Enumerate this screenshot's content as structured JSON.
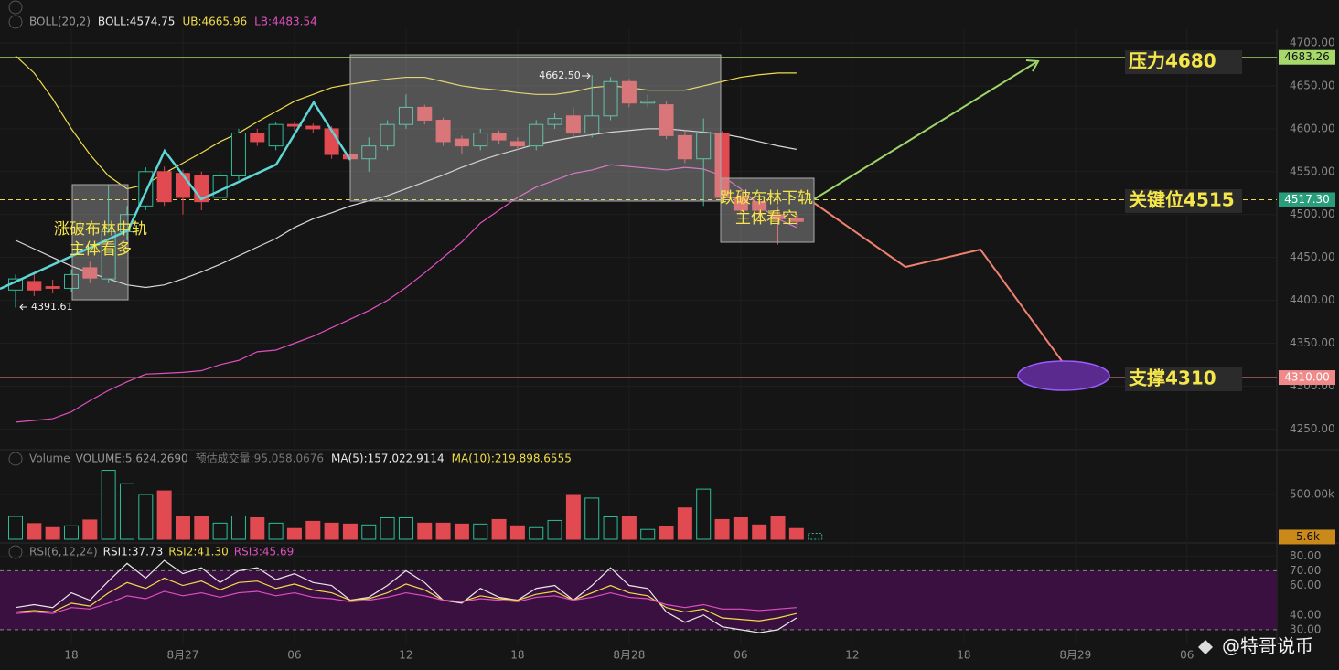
{
  "chart_data": [
    {
      "type": "candlestick",
      "legend": [
        {
          "text": "BOLL(20,2)",
          "color": "#9a9a9a"
        },
        {
          "text": "BOLL:4574.75",
          "color": "#e8e8e8"
        },
        {
          "text": "UB:4665.96",
          "color": "#f0dc4a"
        },
        {
          "text": "LB:4483.54",
          "color": "#e04fc0"
        }
      ],
      "categories": [
        null,
        null,
        null,
        "18",
        null,
        null,
        null,
        null,
        null,
        "8月27",
        null,
        null,
        null,
        null,
        null,
        "06",
        null,
        null,
        null,
        null,
        null,
        "12",
        null,
        null,
        null,
        null,
        null,
        "18",
        null,
        null,
        null,
        null,
        null,
        "8月28",
        null,
        null,
        null,
        null,
        null,
        "06",
        null,
        null,
        null,
        null,
        null,
        "12",
        null,
        null,
        null,
        null,
        null,
        "18",
        null,
        null,
        null,
        null,
        null,
        "8月29",
        null,
        null,
        null,
        null,
        null,
        "06"
      ],
      "open": [
        4412,
        4422,
        4416,
        4414,
        4438,
        4425,
        4480,
        4510,
        4550,
        4548,
        4545,
        4520,
        4545,
        4595,
        4580,
        4605,
        4603,
        4600,
        4570,
        4565,
        4580,
        4605,
        4625,
        4610,
        4588,
        4580,
        4595,
        4585,
        4580,
        4605,
        4615,
        4595,
        4615,
        4655,
        4630,
        4628,
        4592,
        4565,
        4595,
        4520,
        4515,
        4500,
        4495,
        null,
        null,
        null,
        null,
        null,
        null,
        null,
        null,
        null,
        null,
        null,
        null,
        null,
        null,
        null,
        null,
        null,
        null,
        null,
        null,
        null
      ],
      "high": [
        4430,
        4432,
        4424,
        4436,
        4445,
        4535,
        4510,
        4555,
        4556,
        4552,
        4550,
        4550,
        4600,
        4600,
        4608,
        4607,
        4606,
        4603,
        4572,
        4590,
        4610,
        4640,
        4628,
        4613,
        4592,
        4600,
        4598,
        4590,
        4610,
        4618,
        4625,
        4662.5,
        4660,
        4658,
        4640,
        4632,
        4598,
        4612,
        4597,
        4525,
        4520,
        4510,
        4500,
        null,
        null,
        null,
        null,
        null,
        null,
        null,
        null,
        null,
        null,
        null,
        null,
        null,
        null,
        null,
        null,
        null,
        null,
        null,
        null,
        null
      ],
      "low": [
        4391.61,
        4405,
        4408,
        4410,
        4420,
        4420,
        4470,
        4505,
        4510,
        4500,
        4505,
        4515,
        4540,
        4580,
        4575,
        4598,
        4595,
        4565,
        4560,
        4550,
        4575,
        4600,
        4605,
        4580,
        4570,
        4575,
        4582,
        4575,
        4575,
        4600,
        4590,
        4590,
        4610,
        4625,
        4625,
        4588,
        4560,
        4510,
        4515,
        4500,
        4495,
        4465,
        4488,
        null,
        null,
        null,
        null,
        null,
        null,
        null,
        null,
        null,
        null,
        null,
        null,
        null,
        null,
        null,
        null,
        null,
        null,
        null,
        null,
        null
      ],
      "close": [
        4425,
        4412,
        4414,
        4430,
        4426,
        4480,
        4500,
        4550,
        4515,
        4520,
        4515,
        4545,
        4595,
        4585,
        4605,
        4603,
        4600,
        4570,
        4565,
        4580,
        4605,
        4625,
        4610,
        4585,
        4580,
        4595,
        4587,
        4580,
        4605,
        4612,
        4595,
        4615,
        4655,
        4630,
        4632,
        4592,
        4565,
        4595,
        4520,
        4505,
        4505,
        4495,
        4492,
        null,
        null,
        null,
        null,
        null,
        null,
        null,
        null,
        null,
        null,
        null,
        null,
        null,
        null,
        null,
        null,
        null,
        null,
        null,
        null,
        null
      ],
      "up_color": "#2ebd9a",
      "down_color": "#e04a50",
      "series": [
        {
          "color": "#f0dc4a",
          "values": [
            4685,
            4665,
            4635,
            4600,
            4570,
            4545,
            4530,
            4535,
            4548,
            4560,
            4572,
            4585,
            4595,
            4608,
            4620,
            4632,
            4640,
            4648,
            4652,
            4655,
            4658,
            4660,
            4660,
            4655,
            4650,
            4647,
            4645,
            4642,
            4640,
            4640,
            4643,
            4648,
            4650,
            4648,
            4645,
            4645,
            4645,
            4650,
            4655,
            4660,
            4663,
            4665,
            4665,
            null,
            null,
            null,
            null,
            null,
            null,
            null,
            null,
            null,
            null,
            null,
            null,
            null,
            null,
            null,
            null,
            null,
            null,
            null,
            null,
            null
          ]
        },
        {
          "color": "#d8d8d8",
          "values": [
            4470,
            4460,
            4450,
            4440,
            4432,
            4425,
            4418,
            4415,
            4418,
            4425,
            4433,
            4442,
            4452,
            4462,
            4472,
            4485,
            4495,
            4502,
            4510,
            4516,
            4522,
            4530,
            4538,
            4546,
            4555,
            4563,
            4570,
            4576,
            4582,
            4586,
            4590,
            4593,
            4596,
            4598,
            4600,
            4600,
            4598,
            4596,
            4594,
            4590,
            4585,
            4580,
            4576,
            null,
            null,
            null,
            null,
            null,
            null,
            null,
            null,
            null,
            null,
            null,
            null,
            null,
            null,
            null,
            null,
            null,
            null,
            null,
            null,
            null
          ]
        },
        {
          "color": "#e04fc0",
          "values": [
            4258,
            4260,
            4262,
            4270,
            4283,
            4295,
            4305,
            4314,
            4315,
            4316,
            4318,
            4325,
            4330,
            4340,
            4342,
            4350,
            4358,
            4368,
            4378,
            4388,
            4400,
            4415,
            4432,
            4450,
            4468,
            4490,
            4505,
            4520,
            4532,
            4540,
            4548,
            4552,
            4558,
            4556,
            4554,
            4552,
            4555,
            4553,
            4545,
            4530,
            4510,
            4495,
            4485,
            null,
            null,
            null,
            null,
            null,
            null,
            null,
            null,
            null,
            null,
            null,
            null,
            null,
            null,
            null,
            null,
            null,
            null,
            null,
            null,
            null
          ]
        }
      ],
      "ylim": [
        4228,
        4716
      ],
      "yticks": [
        {
          "value": 4250,
          "label": "4250.00"
        },
        {
          "value": 4300,
          "label": "4300.00"
        },
        {
          "value": 4350,
          "label": "4350.00"
        },
        {
          "value": 4400,
          "label": "4400.00"
        },
        {
          "value": 4450,
          "label": "4450.00"
        },
        {
          "value": 4500,
          "label": "4500.00"
        },
        {
          "value": 4550,
          "label": "4550.00"
        },
        {
          "value": 4600,
          "label": "4600.00"
        },
        {
          "value": 4650,
          "label": "4650.00"
        },
        {
          "value": 4700,
          "label": "4700.00"
        }
      ],
      "price_lines": [
        {
          "value": 4683.26,
          "color": "#a6d86a",
          "text_color": "#111",
          "dash": false
        },
        {
          "value": 4517.3,
          "label": "4517.30",
          "color": "#e8dc4a",
          "badge": "#2a9d7a",
          "text_color": "#fff",
          "dash": true
        },
        {
          "value": 4310,
          "label": "4310.00",
          "color": "#f08a8a",
          "text_color": "#fff",
          "dash": false
        }
      ],
      "high_value_label": "4662.50",
      "annotations": {
        "bull_1": "涨破布林中轨",
        "bull_2": "主体看多",
        "bear_1": "跌破布林下轨",
        "bear_2": "主体看空",
        "resistance": "压力4680",
        "key": "关键位4515",
        "support": "支撑4310"
      },
      "grid": true
    },
    {
      "type": "bar",
      "title": "Volume",
      "legend": [
        {
          "text": "VOLUME:5,624.2690",
          "color": "#9a9a9a"
        },
        {
          "text": "预估成交量:95,058.0676",
          "color": "#777"
        },
        {
          "text": "MA(5):157,022.9114",
          "color": "#e8e8e8"
        },
        {
          "text": "MA(10):219,898.6555",
          "color": "#f0dc4a"
        }
      ],
      "values": [
        255000,
        175000,
        130000,
        150000,
        215000,
        770000,
        620000,
        500000,
        540000,
        255000,
        250000,
        180000,
        260000,
        240000,
        180000,
        120000,
        200000,
        180000,
        170000,
        160000,
        240000,
        240000,
        180000,
        180000,
        170000,
        170000,
        220000,
        150000,
        130000,
        210000,
        500000,
        460000,
        250000,
        260000,
        110000,
        140000,
        350000,
        560000,
        220000,
        240000,
        160000,
        250000,
        120000
      ],
      "current_value": {
        "value": 5600,
        "label": "5.6k"
      },
      "ylim": [
        0,
        1000000
      ],
      "yticks": [
        {
          "value": 500000,
          "label": "500.00k"
        }
      ]
    },
    {
      "type": "line",
      "title": "RSI(6,12,24)",
      "series": [
        {
          "name": "RSI1:37.73",
          "color": "#e8e8e8",
          "values": [
            45,
            47,
            45,
            55,
            50,
            63,
            75,
            65,
            77,
            68,
            72,
            62,
            70,
            72,
            64,
            68,
            62,
            60,
            50,
            52,
            60,
            70,
            62,
            50,
            48,
            58,
            52,
            50,
            58,
            60,
            50,
            60,
            72,
            60,
            58,
            42,
            35,
            40,
            32,
            30,
            28,
            30,
            38
          ]
        },
        {
          "name": "RSI2:41.30",
          "color": "#f0dc4a",
          "values": [
            42,
            43,
            42,
            48,
            46,
            55,
            62,
            58,
            65,
            60,
            63,
            57,
            62,
            63,
            58,
            61,
            57,
            55,
            50,
            51,
            55,
            61,
            57,
            50,
            49,
            53,
            51,
            50,
            54,
            56,
            50,
            55,
            60,
            55,
            53,
            45,
            42,
            44,
            38,
            37,
            36,
            38,
            41
          ]
        },
        {
          "name": "RSI3:45.69",
          "color": "#e04fc0",
          "values": [
            41,
            42,
            41,
            45,
            44,
            48,
            53,
            51,
            56,
            53,
            55,
            52,
            55,
            56,
            53,
            55,
            52,
            51,
            49,
            50,
            52,
            55,
            53,
            50,
            49,
            51,
            50,
            49,
            52,
            53,
            50,
            52,
            55,
            52,
            51,
            47,
            45,
            47,
            44,
            44,
            43,
            44,
            45
          ]
        }
      ],
      "band": [
        30,
        70
      ],
      "ylim": [
        20,
        87
      ],
      "yticks": [
        {
          "value": 30,
          "label": "30.00"
        },
        {
          "value": 40,
          "label": "40.00"
        },
        {
          "value": 60,
          "label": "60.00"
        },
        {
          "value": 70,
          "label": "70.00"
        },
        {
          "value": 80,
          "label": "80.00"
        }
      ]
    }
  ],
  "watermark": "@特哥说币"
}
